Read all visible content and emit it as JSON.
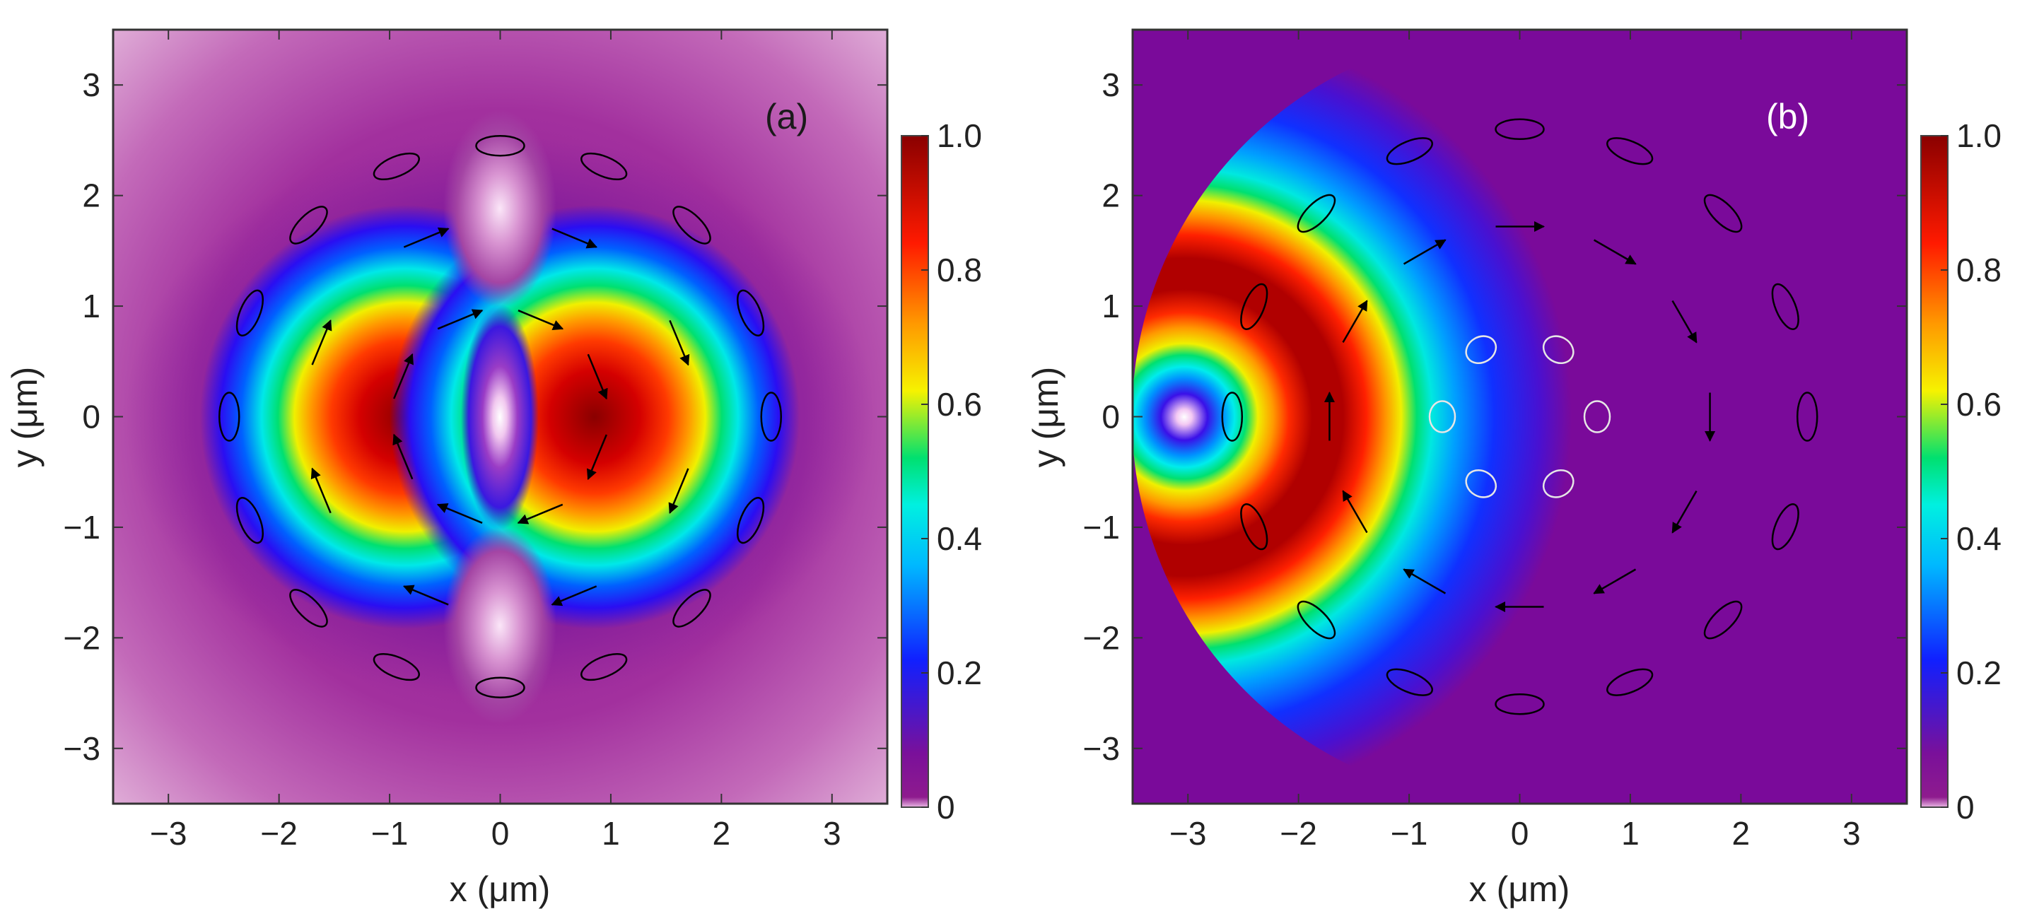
{
  "chart_data": [
    {
      "type": "heatmap",
      "panel_label": "(a)",
      "panel_label_color": "#1a1a1a",
      "xlabel": "x (μm)",
      "ylabel": "y (μm)",
      "xlim": [
        -3.5,
        3.5
      ],
      "ylim": [
        -3.5,
        3.5
      ],
      "xticks": [
        -3,
        -2,
        -1,
        0,
        1,
        2,
        3
      ],
      "yticks": [
        -3,
        -2,
        -1,
        0,
        1,
        2,
        3
      ],
      "colorbar": {
        "range": [
          0,
          1.0
        ],
        "ticks": [
          "1.0",
          "0.8",
          "0.6",
          "0.4",
          "0.2",
          "0"
        ]
      },
      "field": {
        "description_of_intensity": "two lobes centered on the x-axis",
        "lobe_centers": [
          [
            -0.85,
            0
          ],
          [
            0.85,
            0
          ]
        ],
        "peak_value": 1.0,
        "center_minimum": [
          0,
          0
        ],
        "polarization_rings": [
          {
            "radius": 0.95,
            "markers": "linear",
            "color": "#000000"
          },
          {
            "radius": 1.75,
            "markers": "linear",
            "color": "#000000"
          },
          {
            "radius": 2.45,
            "markers": "ellipse",
            "color": "#000000"
          }
        ]
      }
    },
    {
      "type": "heatmap",
      "panel_label": "(b)",
      "panel_label_color": "#ffffff",
      "xlabel": "x (μm)",
      "ylabel": "y (μm)",
      "xlim": [
        -3.5,
        3.5
      ],
      "ylim": [
        -3.5,
        3.5
      ],
      "xticks": [
        -3,
        -2,
        -1,
        0,
        1,
        2,
        3
      ],
      "yticks": [
        -3,
        -2,
        -1,
        0,
        1,
        2,
        3
      ],
      "colorbar": {
        "range": [
          0,
          1.0
        ],
        "ticks": [
          "1.0",
          "0.8",
          "0.6",
          "0.4",
          "0.2",
          "0"
        ]
      },
      "field": {
        "description_of_intensity": "annular ring around a dark center",
        "ring_peak_radius": 1.0,
        "peak_value": 1.0,
        "center_minimum": [
          0,
          0
        ],
        "polarization_rings": [
          {
            "radius": 0.7,
            "markers": "ellipse",
            "color": "#e6e6e6"
          },
          {
            "radius": 1.72,
            "markers": "linear",
            "color": "#000000"
          },
          {
            "radius": 2.6,
            "markers": "ellipse",
            "color": "#000000"
          }
        ]
      }
    }
  ]
}
